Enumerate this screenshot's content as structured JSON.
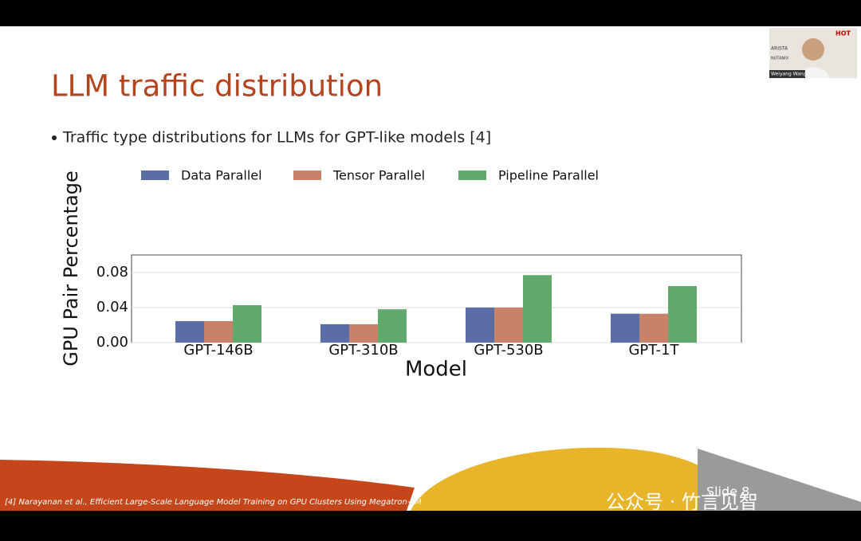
{
  "slide": {
    "title": "LLM traffic distribution",
    "bullet": "Traffic type distributions for LLMs for GPT-like models [4]",
    "footnote": "[4] Narayanan et al., Efficient Large-Scale Language Model Training on GPU Clusters Using Megatron-LM",
    "slide_number": "Slide 8"
  },
  "speaker": {
    "name": "Weiyang Wang",
    "logos": [
      "HOT",
      "ARISTA",
      "NUTANIX"
    ]
  },
  "watermark": "公众号 · 竹言见智",
  "chart_data": {
    "type": "bar",
    "y_label": "GPU Pair Percentage",
    "x_label": "Model",
    "categories": [
      "GPT-146B",
      "GPT-310B",
      "GPT-530B",
      "GPT-1T"
    ],
    "series": [
      {
        "name": "Data Parallel",
        "color": "#5a6ea5",
        "values": [
          0.0245,
          0.021,
          0.04,
          0.033
        ]
      },
      {
        "name": "Tensor Parallel",
        "color": "#c8826a",
        "values": [
          0.0245,
          0.021,
          0.04,
          0.033
        ]
      },
      {
        "name": "Pipeline Parallel",
        "color": "#5faa6a",
        "values": [
          0.0427,
          0.038,
          0.077,
          0.0645
        ]
      }
    ],
    "ylim": [
      0,
      0.1
    ],
    "yticks": [
      {
        "value": 0,
        "label": "0.00"
      },
      {
        "value": 0.04,
        "label": "0.04"
      },
      {
        "value": 0.08,
        "label": "0.08"
      }
    ],
    "grid": true
  }
}
